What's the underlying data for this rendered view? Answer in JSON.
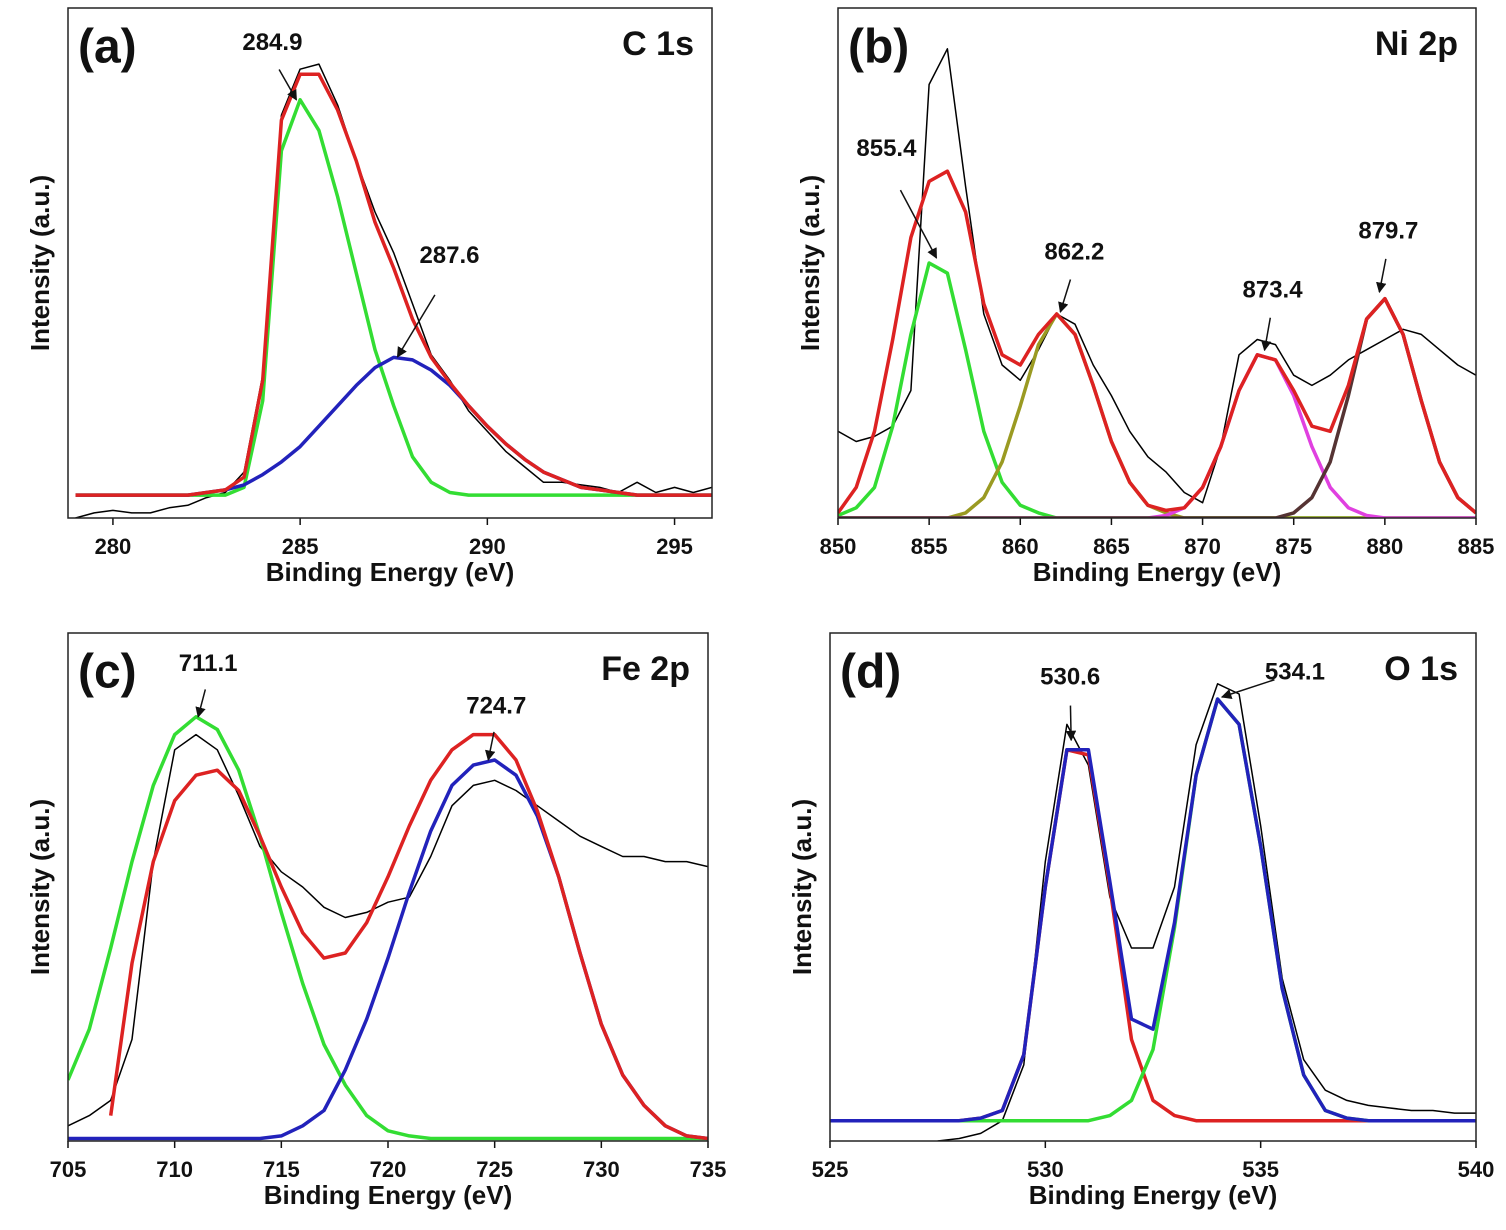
{
  "chart_data": [
    {
      "type": "line",
      "panel_label": "(a)",
      "title": "C 1s",
      "xlabel": "Binding Energy (eV)",
      "ylabel": "Intensity (a.u.)",
      "xlim": [
        278.8,
        296
      ],
      "ylim": [
        0,
        100
      ],
      "xticks": [
        280,
        285,
        290,
        295
      ],
      "x": [
        279,
        279.5,
        280,
        280.5,
        281,
        281.5,
        282,
        282.5,
        283,
        283.5,
        284,
        284.5,
        285,
        285.5,
        286,
        286.5,
        287,
        287.5,
        288,
        288.5,
        289,
        289.5,
        290,
        290.5,
        291,
        291.5,
        292,
        292.5,
        293,
        293.5,
        294,
        294.5,
        295,
        295.5,
        296
      ],
      "series": [
        {
          "color": "#000000",
          "values": [
            0,
            1,
            1.5,
            1,
            1,
            2,
            2.5,
            4,
            5,
            9,
            28,
            79,
            88,
            89,
            81,
            70,
            60,
            52,
            42,
            32,
            27,
            21,
            17,
            13,
            10,
            7,
            7,
            6.5,
            6,
            5,
            7,
            5,
            6,
            5,
            6
          ]
        },
        {
          "color": "#33dd33",
          "values": [
            4.5,
            4.5,
            4.5,
            4.5,
            4.5,
            4.5,
            4.5,
            4.5,
            4.5,
            6,
            23,
            72,
            82,
            76,
            63,
            48,
            33,
            22,
            12,
            7,
            5,
            4.5,
            4.5,
            4.5,
            4.5,
            4.5,
            4.5,
            4.5,
            4.5,
            4.5,
            4.5,
            4.5,
            4.5,
            4.5,
            4.5
          ]
        },
        {
          "color": "#2222bb",
          "values": [
            4.5,
            4.5,
            4.5,
            4.5,
            4.5,
            4.5,
            4.5,
            5,
            5.5,
            6.5,
            8.5,
            11,
            14,
            18,
            22,
            26,
            29.5,
            31.5,
            31,
            29,
            26,
            22,
            18,
            14.5,
            11.5,
            9,
            7.5,
            6,
            5.5,
            5,
            4.5,
            4.5,
            4.5,
            4.5,
            4.5
          ]
        },
        {
          "color": "#dd2222",
          "values": [
            4.5,
            4.5,
            4.5,
            4.5,
            4.5,
            4.5,
            4.5,
            5,
            5.5,
            8,
            27,
            78,
            87,
            87,
            80,
            70,
            58,
            49,
            39,
            31.5,
            26.5,
            22,
            18,
            14.5,
            11.5,
            9,
            7.5,
            6,
            5.5,
            5,
            4.5,
            4.5,
            4.5,
            4.5,
            4.5
          ]
        }
      ],
      "annotations": [
        {
          "text": "284.9",
          "x": 284.9,
          "y": 82
        },
        {
          "text": "287.6",
          "x": 287.6,
          "y": 31.6
        }
      ]
    },
    {
      "type": "line",
      "panel_label": "(b)",
      "title": "Ni 2p",
      "xlabel": "Binding Energy (eV)",
      "ylabel": "Intensity (a.u.)",
      "xlim": [
        850,
        885
      ],
      "ylim": [
        0,
        100
      ],
      "xticks": [
        850,
        855,
        860,
        865,
        870,
        875,
        880,
        885
      ],
      "x": [
        850,
        851,
        852,
        853,
        854,
        855,
        856,
        857,
        858,
        859,
        860,
        861,
        862,
        863,
        864,
        865,
        866,
        867,
        868,
        869,
        870,
        871,
        872,
        873,
        874,
        875,
        876,
        877,
        878,
        879,
        880,
        881,
        882,
        883,
        884,
        885
      ],
      "series": [
        {
          "color": "#000000",
          "values": [
            17,
            15,
            16,
            18,
            25,
            85,
            92,
            65,
            40,
            30,
            27,
            33,
            40,
            38,
            30,
            24,
            17,
            12,
            9,
            5,
            3,
            14,
            32,
            35,
            34,
            28,
            26,
            28,
            31,
            33,
            35,
            37,
            36,
            33,
            30,
            28
          ]
        },
        {
          "color": "#33dd33",
          "values": [
            0.5,
            2,
            6,
            18,
            36,
            50,
            48,
            33,
            17,
            7,
            2.5,
            1,
            0,
            0,
            0,
            0,
            0,
            0,
            0,
            0,
            0,
            0,
            0,
            0,
            0,
            0,
            0,
            0,
            0,
            0,
            0,
            0,
            0,
            0,
            0,
            0
          ]
        },
        {
          "color": "#9a9a22",
          "values": [
            0,
            0,
            0,
            0,
            0,
            0,
            0,
            1,
            4,
            11,
            22,
            34,
            40,
            36,
            26,
            15,
            7,
            2.5,
            1,
            0,
            0,
            0,
            0,
            0,
            0,
            0,
            0,
            0,
            0,
            0,
            0,
            0,
            0,
            0,
            0,
            0
          ]
        },
        {
          "color": "#e040e0",
          "values": [
            0,
            0,
            0,
            0,
            0,
            0,
            0,
            0,
            0,
            0,
            0,
            0,
            0,
            0,
            0,
            0,
            0,
            0,
            0.5,
            2,
            6,
            14,
            25,
            32,
            31,
            24,
            14,
            6,
            2,
            0.5,
            0,
            0,
            0,
            0,
            0,
            0
          ]
        },
        {
          "color": "#553333",
          "values": [
            0,
            0,
            0,
            0,
            0,
            0,
            0,
            0,
            0,
            0,
            0,
            0,
            0,
            0,
            0,
            0,
            0,
            0,
            0,
            0,
            0,
            0,
            0,
            0,
            0,
            1,
            4,
            11,
            24,
            39,
            43,
            36,
            23,
            11,
            4,
            1
          ]
        },
        {
          "color": "#dd2222",
          "values": [
            1,
            6,
            17,
            35,
            55,
            66,
            68,
            60,
            42,
            32,
            30,
            36,
            40,
            36,
            26,
            15,
            7,
            2.5,
            1.5,
            2,
            6,
            14,
            25,
            32,
            31,
            25,
            18,
            17,
            26,
            39,
            43,
            36,
            23,
            11,
            4,
            1
          ]
        }
      ],
      "annotations": [
        {
          "text": "855.4",
          "x": 855.4,
          "y": 51
        },
        {
          "text": "862.2",
          "x": 862.2,
          "y": 40.4
        },
        {
          "text": "873.4",
          "x": 873.4,
          "y": 32.9
        },
        {
          "text": "879.7",
          "x": 879.7,
          "y": 44.3
        }
      ]
    },
    {
      "type": "line",
      "panel_label": "(c)",
      "title": "Fe 2p",
      "xlabel": "Binding Energy (eV)",
      "ylabel": "Intensity (a.u.)",
      "xlim": [
        705,
        735
      ],
      "ylim": [
        0,
        100
      ],
      "xticks": [
        705,
        710,
        715,
        720,
        725,
        730,
        735
      ],
      "x": [
        705,
        706,
        707,
        708,
        709,
        710,
        711,
        712,
        713,
        714,
        715,
        716,
        717,
        718,
        719,
        720,
        721,
        722,
        723,
        724,
        725,
        726,
        727,
        728,
        729,
        730,
        731,
        732,
        733,
        734,
        735
      ],
      "series": [
        {
          "color": "#000000",
          "values": [
            3,
            5,
            8,
            20,
            55,
            77,
            80,
            77,
            68,
            58,
            53,
            50,
            46,
            44,
            45,
            47,
            48,
            56,
            66,
            70,
            71,
            69,
            66,
            63,
            60,
            58,
            56,
            56,
            55,
            55,
            54
          ]
        },
        {
          "color": "#33dd33",
          "values": [
            12,
            22,
            38,
            55,
            70,
            80,
            83.5,
            81,
            73,
            60,
            45,
            31,
            19,
            11,
            5,
            2,
            1,
            0.5,
            0.5,
            0.5,
            0.5,
            0.5,
            0.5,
            0.5,
            0.5,
            0.5,
            0.5,
            0.5,
            0.5,
            0.5,
            0.5
          ]
        },
        {
          "color": "#2222bb",
          "values": [
            0.5,
            0.5,
            0.5,
            0.5,
            0.5,
            0.5,
            0.5,
            0.5,
            0.5,
            0.5,
            1,
            3,
            6,
            14,
            24,
            36,
            49,
            61,
            70,
            74,
            75,
            72,
            64,
            52,
            37,
            23,
            13,
            7,
            3,
            1,
            0.5
          ]
        },
        {
          "color": "#dd2222",
          "values": [
            null,
            null,
            5,
            35,
            55,
            67,
            72,
            73,
            69,
            60,
            50,
            41,
            36,
            37,
            43,
            52,
            62,
            71,
            77,
            80,
            80,
            75,
            65,
            52,
            37,
            23,
            13,
            7,
            3,
            1,
            0.5
          ]
        }
      ],
      "annotations": [
        {
          "text": "711.1",
          "x": 711.1,
          "y": 83.5
        },
        {
          "text": "724.7",
          "x": 724.7,
          "y": 75
        }
      ]
    },
    {
      "type": "line",
      "panel_label": "(d)",
      "title": "O 1s",
      "xlabel": "Binding Energy (eV)",
      "ylabel": "Intensity (a.u.)",
      "xlim": [
        525,
        540
      ],
      "ylim": [
        0,
        100
      ],
      "xticks": [
        525,
        530,
        535,
        540
      ],
      "x": [
        525,
        525.5,
        526,
        526.5,
        527,
        527.5,
        528,
        528.5,
        529,
        529.5,
        530,
        530.5,
        531,
        531.5,
        532,
        532.5,
        533,
        533.5,
        534,
        534.5,
        535,
        535.5,
        536,
        536.5,
        537,
        537.5,
        538,
        538.5,
        539,
        539.5,
        540
      ],
      "series": [
        {
          "color": "#000000",
          "values": [
            null,
            null,
            null,
            null,
            null,
            0,
            0.5,
            1.5,
            4,
            15,
            55,
            82,
            74,
            48,
            38,
            38,
            50,
            78,
            90,
            88,
            62,
            32,
            16,
            10,
            8,
            7,
            6.5,
            6,
            6,
            5.5,
            5.5
          ]
        },
        {
          "color": "#dd2222",
          "values": [
            4,
            4,
            4,
            4,
            4,
            4,
            4,
            4.5,
            6,
            17,
            50,
            77,
            76,
            50,
            20,
            8,
            5,
            4,
            4,
            4,
            4,
            4,
            4,
            4,
            4,
            4,
            4,
            4,
            4,
            4,
            4
          ]
        },
        {
          "color": "#33dd33",
          "values": [
            4,
            4,
            4,
            4,
            4,
            4,
            4,
            4,
            4,
            4,
            4,
            4,
            4,
            5,
            8,
            18,
            42,
            72,
            87,
            82,
            58,
            30,
            13,
            6,
            4.5,
            4,
            4,
            4,
            4,
            4,
            4
          ]
        },
        {
          "color": "#2222bb",
          "values": [
            4,
            4,
            4,
            4,
            4,
            4,
            4,
            4.5,
            6,
            17,
            50,
            77,
            77,
            51,
            24,
            22,
            43,
            72,
            87,
            82,
            58,
            30,
            13,
            6,
            4.5,
            4,
            4,
            4,
            4,
            4,
            4
          ]
        }
      ],
      "annotations": [
        {
          "text": "530.6",
          "x": 530.6,
          "y": 78.9
        },
        {
          "text": "534.1",
          "x": 534.1,
          "y": 87.4
        }
      ]
    }
  ]
}
